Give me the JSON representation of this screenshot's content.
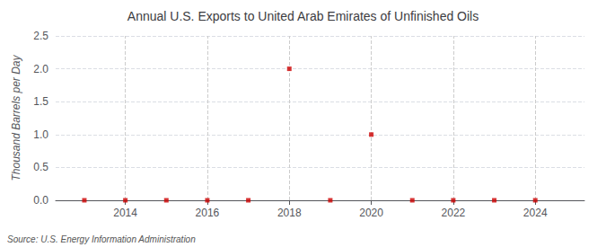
{
  "chart_data": {
    "type": "scatter",
    "title": "Annual U.S. Exports to United Arab Emirates of Unfinished Oils",
    "ylabel": "Thousand Barrels per Day",
    "annotations": [
      "Source: U.S. Energy Information Administration"
    ],
    "x": [
      2013,
      2014,
      2015,
      2016,
      2017,
      2018,
      2019,
      2020,
      2021,
      2022,
      2023,
      2024
    ],
    "values": [
      0,
      0,
      0,
      0,
      0,
      2.0,
      0,
      1.0,
      0,
      0,
      0,
      0
    ],
    "color": "#cc0000",
    "marker": "square",
    "xlim": [
      2012.3,
      2025.2
    ],
    "xticks": [
      2014,
      2016,
      2018,
      2020,
      2022,
      2024
    ],
    "ylim": [
      0,
      2.5
    ],
    "yticks": [
      {
        "value": 0.0,
        "label": "0.0"
      },
      0.5,
      {
        "value": 1.0,
        "label": "1.0"
      },
      1.5,
      {
        "value": 2.0,
        "label": "2.0"
      },
      2.5
    ],
    "grid": true
  }
}
